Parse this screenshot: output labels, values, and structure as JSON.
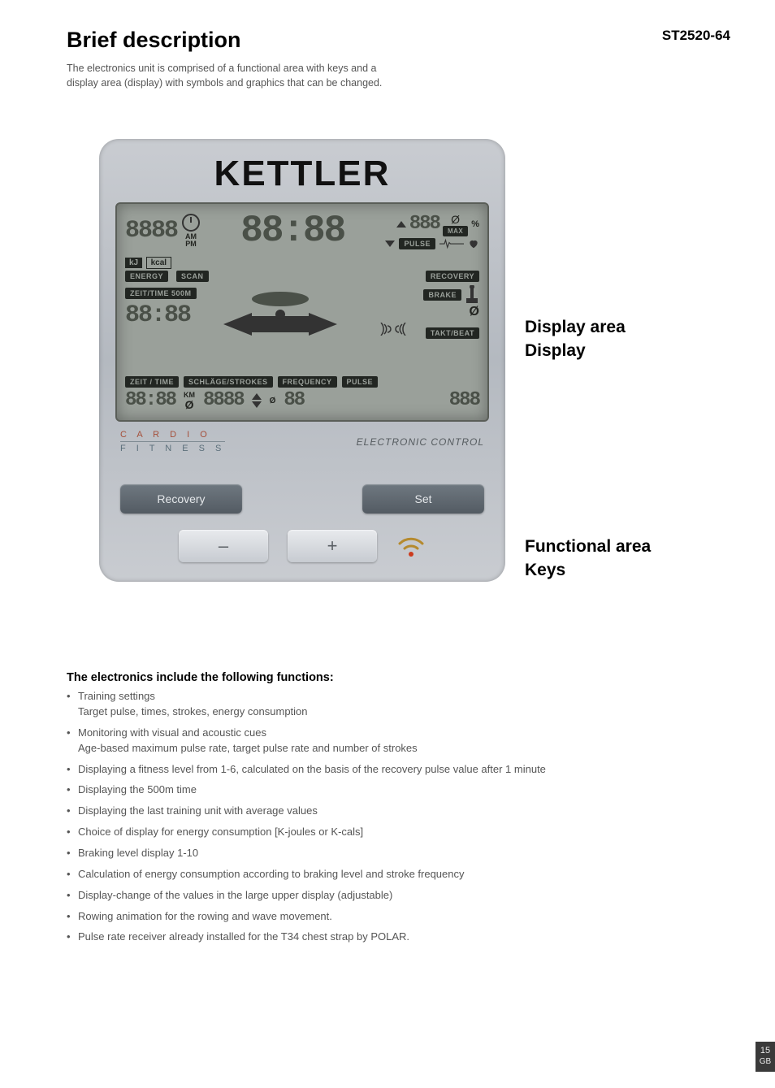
{
  "model": "ST2520-64",
  "title": "Brief description",
  "intro": "The electronics unit is comprised of a functional area with keys and a display area (display) with symbols and graphics that can be changed.",
  "device": {
    "brand": "KETTLER",
    "screen": {
      "top_left_seg": "8888",
      "am": "AM",
      "pm": "PM",
      "center_seg": "88:88",
      "pulse_small": "888",
      "pct_label": "%",
      "max_label": "MAX",
      "pulse_label": "PULSE",
      "kj": "kJ",
      "kcal": "kcal",
      "energy": "ENERGY",
      "scan": "SCAN",
      "recovery": "RECOVERY",
      "time500_label": "ZEIT/TIME 500M",
      "time500_seg": "88:88",
      "brake": "BRAKE",
      "brake_null": "Ø",
      "takt": "TAKT/BEAT",
      "zeit_time": "ZEIT / TIME",
      "strokes": "SCHLÄGE/STROKES",
      "frequency": "FREQUENCY",
      "pulse2": "PULSE",
      "bl_seg1": "88:88",
      "km": "KM",
      "null2": "Ø",
      "bl_seg2": "8888",
      "freq_null": "Ø",
      "bl_seg3": "88",
      "bl_seg4": "888"
    },
    "cardio_top": "C A R D I O",
    "cardio_bottom": "F I T N E S S",
    "electronic_control": "ELECTRONIC CONTROL",
    "btn_recovery": "Recovery",
    "btn_set": "Set",
    "btn_minus": "–",
    "btn_plus": "+"
  },
  "callouts": {
    "display_l1": "Display area",
    "display_l2": "Display",
    "func_l1": "Functional area",
    "func_l2": "Keys"
  },
  "functions": {
    "heading": "The electronics include the following functions:",
    "items": [
      {
        "main": "Training settings",
        "sub": "Target pulse, times, strokes, energy consumption"
      },
      {
        "main": "Monitoring with visual and acoustic cues",
        "sub": "Age-based maximum pulse rate, target pulse rate and number of strokes"
      },
      {
        "main": "Displaying a fitness level from 1-6, calculated on the basis of the recovery pulse value after 1 minute"
      },
      {
        "main": "Displaying the 500m time"
      },
      {
        "main": "Displaying the last training unit with average values"
      },
      {
        "main": "Choice of display for energy consumption [K-joules or K-cals]"
      },
      {
        "main": "Braking level display 1-10"
      },
      {
        "main": "Calculation of energy consumption according to braking level and stroke frequency"
      },
      {
        "main": "Display-change of the values in the large upper display (adjustable)"
      },
      {
        "main": "Rowing animation for the rowing and wave movement."
      },
      {
        "main": "Pulse rate receiver already installed for the T34 chest strap by POLAR."
      }
    ]
  },
  "page": {
    "num": "15",
    "lang": "GB"
  }
}
